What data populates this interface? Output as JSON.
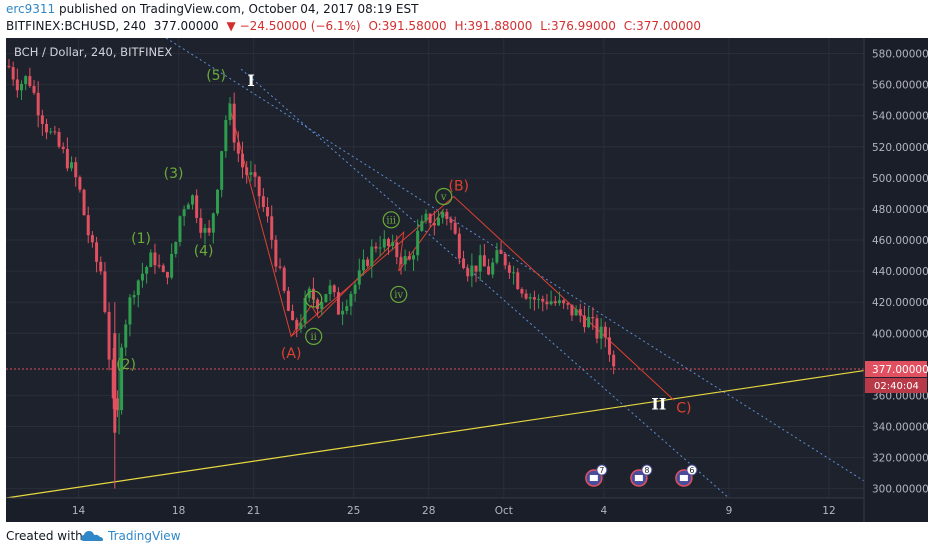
{
  "header": {
    "author": "erc9311",
    "published_text": "published on TradingView.com, October 04, 2017 08:19 EST",
    "symbol": "BITFINEX:BCHUSD, 240",
    "price": "377.00000",
    "change": "▼ −24.50000 (−6.1%)",
    "ohlc_open": "O:391.58000",
    "ohlc_high": "H:391.88000",
    "ohlc_low": "L:376.99000",
    "ohlc_close": "C:377.00000"
  },
  "footer": {
    "created_with": "Created with",
    "brand": "TradingView"
  },
  "colors": {
    "background": "#1e222d",
    "up": "#2e9e4e",
    "down": "#e05060",
    "wave_green": "#6aaa3a",
    "wave_red": "#e04030",
    "support_line": "#e8d840",
    "channel_line": "#5b8fd6",
    "price_tag": "#e05060"
  },
  "chart_data": {
    "type": "candlestick",
    "title": "BCH / Dollar, 240, BITFINEX",
    "yticks": [
      "580.00000",
      "560.00000",
      "540.00000",
      "520.00000",
      "500.00000",
      "480.00000",
      "460.00000",
      "440.00000",
      "420.00000",
      "400.00000",
      "377.00000",
      "360.00000",
      "340.00000",
      "320.00000",
      "300.00000"
    ],
    "ylim": [
      294,
      590
    ],
    "xticks": [
      "14",
      "18",
      "21",
      "25",
      "28",
      "Oct",
      "4",
      "9",
      "12"
    ],
    "x_tick_days": [
      14,
      18,
      21,
      25,
      28,
      31,
      35,
      40,
      44
    ],
    "xlim": [
      11.1,
      45.4
    ],
    "last_price": "377.00000",
    "countdown": "02:40:04",
    "close_path": [
      [
        11.2,
        572
      ],
      [
        11.6,
        560
      ],
      [
        12.0,
        565
      ],
      [
        12.4,
        545
      ],
      [
        12.8,
        530
      ],
      [
        13.2,
        520
      ],
      [
        13.6,
        510
      ],
      [
        14.0,
        495
      ],
      [
        14.3,
        470
      ],
      [
        14.6,
        450
      ],
      [
        14.9,
        440
      ],
      [
        15.1,
        410
      ],
      [
        15.3,
        370
      ],
      [
        15.5,
        330
      ],
      [
        15.7,
        395
      ],
      [
        15.9,
        410
      ],
      [
        16.2,
        430
      ],
      [
        16.6,
        440
      ],
      [
        17.0,
        450
      ],
      [
        17.4,
        435
      ],
      [
        17.8,
        450
      ],
      [
        18.1,
        480
      ],
      [
        18.5,
        490
      ],
      [
        18.9,
        470
      ],
      [
        19.2,
        460
      ],
      [
        19.5,
        490
      ],
      [
        19.8,
        530
      ],
      [
        20.0,
        548
      ],
      [
        20.3,
        520
      ],
      [
        20.6,
        505
      ],
      [
        20.9,
        500
      ],
      [
        21.2,
        490
      ],
      [
        21.6,
        470
      ],
      [
        22.0,
        440
      ],
      [
        22.3,
        420
      ],
      [
        22.6,
        400
      ],
      [
        22.9,
        410
      ],
      [
        23.2,
        425
      ],
      [
        23.6,
        420
      ],
      [
        24.0,
        430
      ],
      [
        24.4,
        415
      ],
      [
        24.8,
        425
      ],
      [
        25.2,
        435
      ],
      [
        25.6,
        450
      ],
      [
        26.0,
        460
      ],
      [
        26.4,
        455
      ],
      [
        26.8,
        450
      ],
      [
        27.2,
        445
      ],
      [
        27.6,
        465
      ],
      [
        28.0,
        475
      ],
      [
        28.3,
        470
      ],
      [
        28.6,
        480
      ],
      [
        28.9,
        470
      ],
      [
        29.2,
        455
      ],
      [
        29.6,
        440
      ],
      [
        30.0,
        445
      ],
      [
        30.4,
        440
      ],
      [
        30.8,
        450
      ],
      [
        31.2,
        445
      ],
      [
        31.6,
        432
      ],
      [
        32.0,
        425
      ],
      [
        32.4,
        420
      ],
      [
        32.8,
        422
      ],
      [
        33.2,
        418
      ],
      [
        33.6,
        415
      ],
      [
        34.0,
        412
      ],
      [
        34.4,
        408
      ],
      [
        34.8,
        398
      ],
      [
        35.0,
        401
      ],
      [
        35.2,
        392
      ],
      [
        35.4,
        377
      ]
    ],
    "drawings": {
      "support_line": [
        [
          11.1,
          294
        ],
        [
          45.4,
          376
        ]
      ],
      "channel_upper": [
        [
          17.5,
          590
        ],
        [
          45.4,
          305
        ]
      ],
      "channel_lower": [
        [
          20.5,
          570
        ],
        [
          40.0,
          294
        ]
      ],
      "wave_red": [
        [
          20.0,
          548
        ],
        [
          22.5,
          398
        ],
        [
          29.0,
          488
        ],
        [
          37.8,
          357
        ]
      ],
      "wave_green_sub": [
        [
          22.5,
          398
        ],
        [
          23.3,
          418
        ],
        [
          23.6,
          410
        ],
        [
          27.0,
          465
        ],
        [
          26.8,
          440
        ],
        [
          28.6,
          480
        ]
      ]
    },
    "annotations": [
      {
        "text": "(1)",
        "day": 16.5,
        "price": 458,
        "color": "green"
      },
      {
        "text": "(2)",
        "day": 15.9,
        "price": 377,
        "color": "green"
      },
      {
        "text": "(3)",
        "day": 17.8,
        "price": 500,
        "color": "green"
      },
      {
        "text": "(4)",
        "day": 19.0,
        "price": 450,
        "color": "green"
      },
      {
        "text": "(5)",
        "day": 19.5,
        "price": 563,
        "color": "green"
      },
      {
        "text": "I",
        "day": 20.9,
        "price": 559,
        "color": "white"
      },
      {
        "text": "(A)",
        "day": 22.5,
        "price": 384,
        "color": "red"
      },
      {
        "text": "(B)",
        "day": 29.2,
        "price": 492,
        "color": "red"
      },
      {
        "text": "II",
        "day": 37.2,
        "price": 351,
        "color": "white"
      },
      {
        "text": "C)",
        "day": 38.2,
        "price": 349,
        "color": "red"
      }
    ],
    "circled_labels": [
      {
        "text": "i",
        "day": 23.4,
        "price": 422
      },
      {
        "text": "ii",
        "day": 23.4,
        "price": 398
      },
      {
        "text": "iii",
        "day": 26.5,
        "price": 473
      },
      {
        "text": "iv",
        "day": 26.8,
        "price": 425
      },
      {
        "text": "v",
        "day": 28.6,
        "price": 488
      }
    ],
    "event_badges": [
      {
        "count": "7",
        "day": 34.6,
        "price": 303
      },
      {
        "count": "8",
        "day": 36.4,
        "price": 303
      },
      {
        "count": "6",
        "day": 38.2,
        "price": 303
      }
    ]
  }
}
